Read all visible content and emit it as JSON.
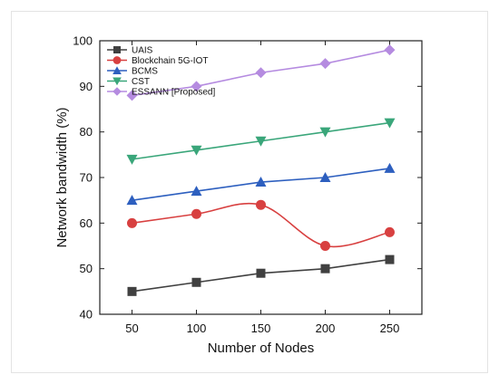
{
  "chart_data": {
    "type": "line",
    "x": [
      50,
      100,
      150,
      200,
      250
    ],
    "xlabel": "Number of Nodes",
    "ylabel": "Network  bandwidth (%)",
    "xlim": [
      25,
      275
    ],
    "ylim": [
      40,
      100
    ],
    "xticks": [
      50,
      100,
      150,
      200,
      250
    ],
    "yticks": [
      40,
      50,
      60,
      70,
      80,
      90,
      100
    ],
    "grid": false,
    "legend_position": "top-left",
    "series": [
      {
        "name": "UAIS",
        "values": [
          45,
          47,
          49,
          50,
          52
        ],
        "color": "#404040",
        "marker": "square",
        "smooth": false
      },
      {
        "name": "Blockchain 5G-IOT",
        "values": [
          60,
          62,
          64,
          55,
          58
        ],
        "color": "#d84040",
        "marker": "circle",
        "smooth": true
      },
      {
        "name": "BCMS",
        "values": [
          65,
          67,
          69,
          70,
          72
        ],
        "color": "#2d5fbf",
        "marker": "triangle-up",
        "smooth": false
      },
      {
        "name": "CST",
        "values": [
          74,
          76,
          78,
          80,
          82
        ],
        "color": "#3aa67a",
        "marker": "triangle-down",
        "smooth": false
      },
      {
        "name": "ESSANN [Proposed]",
        "values": [
          88,
          90,
          93,
          95,
          98
        ],
        "color": "#b58be0",
        "marker": "diamond",
        "smooth": false
      }
    ]
  }
}
